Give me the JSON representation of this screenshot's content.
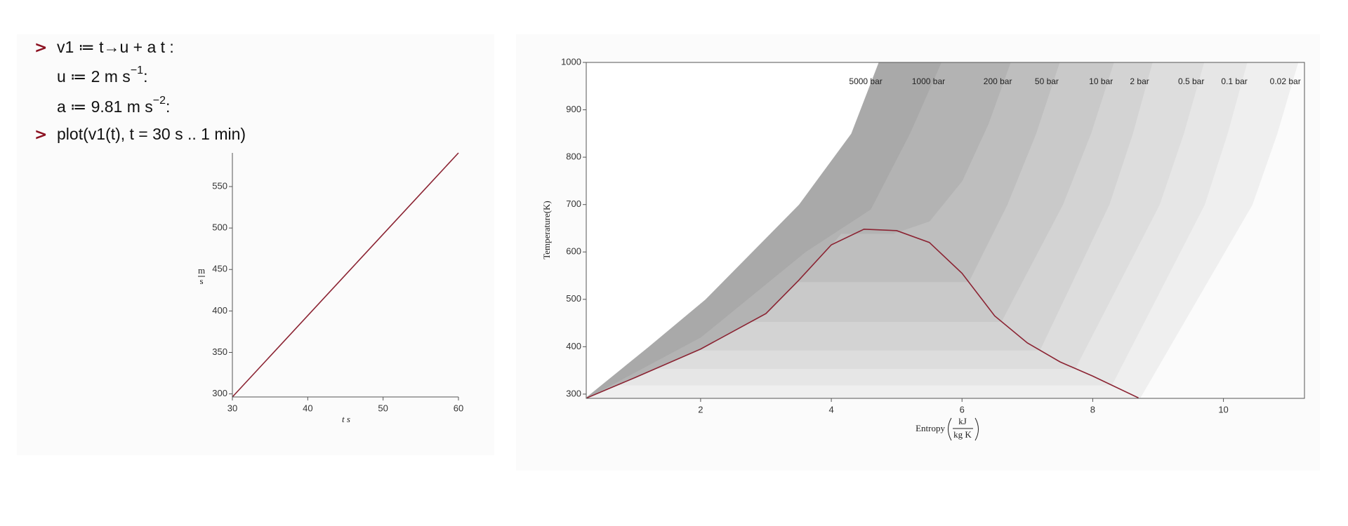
{
  "worksheet": {
    "lines": [
      {
        "prompt": ">",
        "main": "v1 ≔ t→u + a t :"
      },
      {
        "main": "u ≔ 2 m s",
        "sup": "−1",
        "tail": ":"
      },
      {
        "main": "a ≔ 9.81 m s",
        "sup": "−2",
        "tail": ":"
      },
      {
        "prompt": ">",
        "main": "plot(v1(t), t = 30 s .. 1 min)"
      }
    ]
  },
  "chart_data": [
    {
      "type": "line",
      "xlabel": "t s",
      "ylabel": {
        "numerator": "m",
        "denominator": "s"
      },
      "x": [
        30,
        60
      ],
      "series": [
        {
          "color": "#8b2332",
          "values": [
            296.3,
            590.6
          ]
        }
      ],
      "xlim": [
        30,
        60
      ],
      "ylim": [
        296.3,
        590.6
      ],
      "xticks": [
        30,
        40,
        50,
        60
      ],
      "yticks": [
        300,
        350,
        400,
        450,
        500,
        550
      ]
    },
    {
      "type": "area",
      "ylabel": "Temperature(K)",
      "xlabel": {
        "text": "Entropy",
        "numerator": "kJ",
        "denominator": "kg K"
      },
      "xlim": [
        0.25,
        11.24
      ],
      "ylim": [
        291,
        1000
      ],
      "xticks": [
        2,
        4,
        6,
        8,
        10
      ],
      "yticks": [
        300,
        400,
        500,
        600,
        700,
        800,
        900,
        1000
      ],
      "series": [
        {
          "name": "5000 bar",
          "color": "#ffffff",
          "x": [
            0.26,
            1.2,
            2.07,
            3.5,
            4.3,
            4.72
          ],
          "values": [
            295,
            400,
            500,
            700,
            850,
            1000
          ]
        },
        {
          "name": "1000 bar",
          "color": "#a9a9a9",
          "x": [
            0.26,
            2.0,
            3.6,
            4.6,
            5.2,
            5.68
          ],
          "values": [
            292,
            420,
            600,
            690,
            850,
            1000
          ]
        },
        {
          "name": "200 bar",
          "color": "#b3b3b3",
          "x": [
            0.26,
            1,
            2,
            3,
            3.5,
            4.0,
            4.15,
            4.95,
            5.5,
            6.0,
            6.4,
            6.74
          ],
          "values": [
            292,
            335,
            395,
            470,
            540,
            615,
            639,
            639,
            665,
            750,
            870,
            1000
          ]
        },
        {
          "name": "50 bar",
          "color": "#bebebe",
          "x": [
            0.26,
            1,
            2,
            3,
            3.48,
            6.1,
            6.69,
            7.13,
            7.49
          ],
          "values": [
            292,
            335,
            395,
            470,
            537,
            537,
            700,
            850,
            1000
          ]
        },
        {
          "name": "10 bar",
          "color": "#c9c9c9",
          "x": [
            0.26,
            1,
            2,
            2.77,
            6.6,
            7.54,
            7.97,
            8.32
          ],
          "values": [
            292,
            335,
            395,
            453,
            453,
            700,
            850,
            1000
          ]
        },
        {
          "name": "2 bar",
          "color": "#d3d3d3",
          "x": [
            0.26,
            1,
            1.97,
            7.19,
            8.25,
            8.61,
            8.91
          ],
          "values": [
            292,
            335,
            393,
            393,
            700,
            850,
            1000
          ]
        },
        {
          "name": "0.5 bar",
          "color": "#dddddd",
          "x": [
            0.26,
            1,
            1.32,
            7.73,
            9.02,
            9.39,
            9.7
          ],
          "values": [
            292,
            335,
            354,
            354,
            700,
            850,
            1000
          ]
        },
        {
          "name": "0.1 bar",
          "color": "#e6e6e6",
          "x": [
            0.26,
            0.72,
            8.29,
            9.71,
            10.06,
            10.36
          ],
          "values": [
            292,
            319,
            319,
            700,
            850,
            1000
          ]
        },
        {
          "name": "0.02 bar",
          "color": "#efefef",
          "x": [
            0.26,
            8.72,
            10.44,
            10.82,
            11.14
          ],
          "values": [
            291,
            291,
            700,
            850,
            1000
          ]
        },
        {
          "type": "line",
          "color": "#8b2332",
          "x": [
            0.26,
            1,
            2,
            3,
            3.5,
            4,
            4.5,
            5,
            5.5,
            6,
            6.5,
            7,
            7.5,
            8,
            8.7
          ],
          "values": [
            292,
            335,
            395,
            470,
            540,
            615,
            648,
            645,
            620,
            555,
            465,
            408,
            368,
            338,
            292
          ]
        }
      ]
    }
  ]
}
